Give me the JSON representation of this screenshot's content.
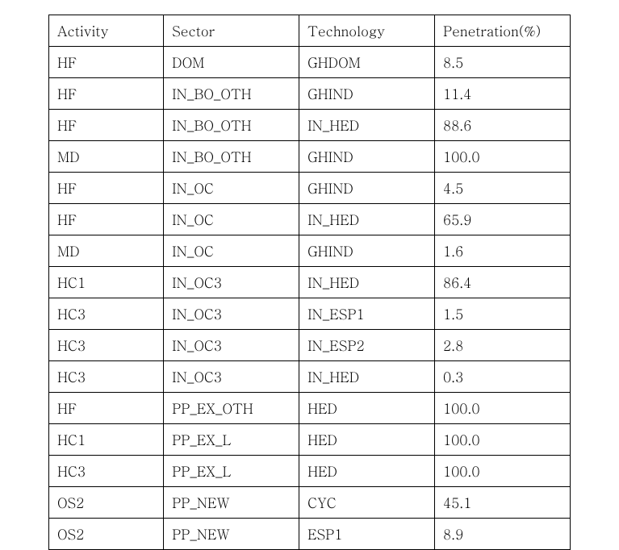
{
  "table": {
    "type": "table",
    "columns": [
      "Activity",
      "Sector",
      "Technology",
      "Penetration(%)"
    ],
    "column_widths_pct": [
      22,
      26,
      26,
      26
    ],
    "font_family": "Batang / Times New Roman",
    "font_size_pt": 13,
    "border_color": "#000000",
    "background_color": "#ffffff",
    "text_color": "#000000",
    "cell_align": "left",
    "rows": [
      [
        "HF",
        "DOM",
        "GHDOM",
        "8.5"
      ],
      [
        "HF",
        "IN_BO_OTH",
        "GHIND",
        "11.4"
      ],
      [
        "HF",
        "IN_BO_OTH",
        "IN_HED",
        "88.6"
      ],
      [
        "MD",
        "IN_BO_OTH",
        "GHIND",
        "100.0"
      ],
      [
        "HF",
        "IN_OC",
        "GHIND",
        "4.5"
      ],
      [
        "HF",
        "IN_OC",
        "IN_HED",
        "65.9"
      ],
      [
        "MD",
        "IN_OC",
        "GHIND",
        "1.6"
      ],
      [
        "HC1",
        "IN_OC3",
        "IN_HED",
        "86.4"
      ],
      [
        "HC3",
        "IN_OC3",
        "IN_ESP1",
        "1.5"
      ],
      [
        "HC3",
        "IN_OC3",
        "IN_ESP2",
        "2.8"
      ],
      [
        "HC3",
        "IN_OC3",
        "IN_HED",
        "0.3"
      ],
      [
        "HF",
        "PP_EX_OTH",
        "HED",
        "100.0"
      ],
      [
        "HC1",
        "PP_EX_L",
        "HED",
        "100.0"
      ],
      [
        "HC3",
        "PP_EX_L",
        "HED",
        "100.0"
      ],
      [
        "OS2",
        "PP_NEW",
        "CYC",
        "45.1"
      ],
      [
        "OS2",
        "PP_NEW",
        "ESP1",
        "8.9"
      ]
    ]
  }
}
